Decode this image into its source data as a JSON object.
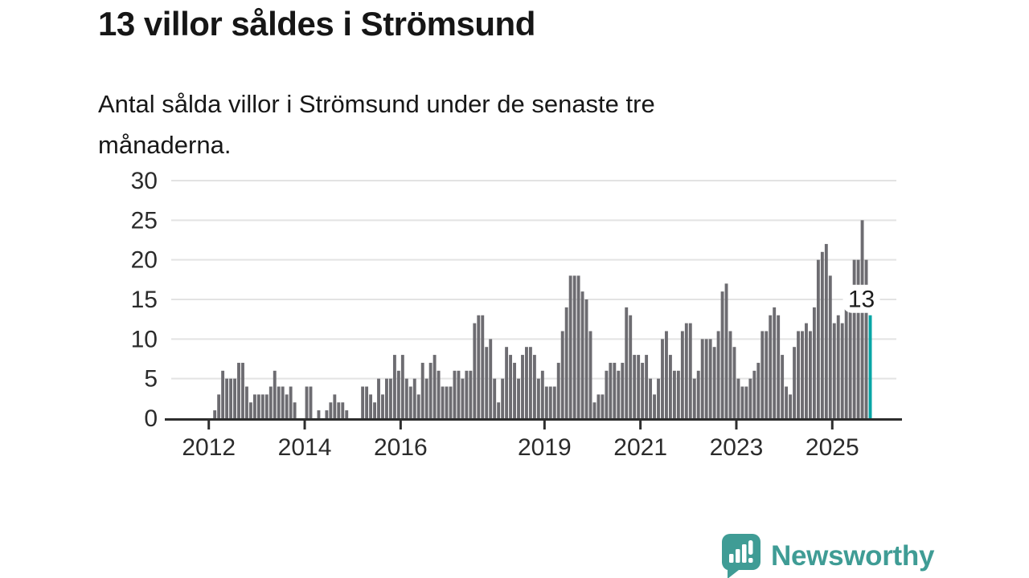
{
  "header": {
    "title": "13 villor såldes i Strömsund",
    "subtitle_lines": [
      "Antal sålda villor i Strömsund under de senaste tre",
      "månaderna."
    ]
  },
  "footer": {
    "brand": "Newsworthy"
  },
  "colors": {
    "bar": "#6d6c71",
    "highlight": "#00a5a5",
    "axis": "#2e2e2e",
    "grid": "#e3e3e3",
    "brand": "#3f9c95",
    "text": "#1a1a1a",
    "annotation_bg": "#ffffff"
  },
  "chart_data": {
    "type": "bar",
    "title": "13 villor såldes i Strömsund",
    "subtitle": "Antal sålda villor i Strömsund under de senaste tre månaderna.",
    "xlabel": "",
    "ylabel": "",
    "ylim": [
      0,
      30
    ],
    "yticks": [
      0,
      5,
      10,
      15,
      20,
      25,
      30
    ],
    "grid": true,
    "legend": "none",
    "x_unit": "month",
    "xticks": [
      {
        "label": "2012",
        "index": 10
      },
      {
        "label": "2014",
        "index": 34
      },
      {
        "label": "2016",
        "index": 58
      },
      {
        "label": "2019",
        "index": 94
      },
      {
        "label": "2021",
        "index": 118
      },
      {
        "label": "2023",
        "index": 142
      },
      {
        "label": "2025",
        "index": 166
      }
    ],
    "values": [
      0,
      0,
      0,
      0,
      0,
      0,
      0,
      0,
      0,
      0,
      0,
      1,
      3,
      6,
      5,
      5,
      5,
      7,
      7,
      4,
      2,
      3,
      3,
      3,
      3,
      4,
      6,
      4,
      4,
      3,
      4,
      2,
      0,
      0,
      4,
      4,
      0,
      1,
      0,
      1,
      2,
      3,
      2,
      2,
      1,
      0,
      0,
      0,
      4,
      4,
      3,
      2,
      5,
      3,
      5,
      5,
      8,
      6,
      8,
      5,
      4,
      5,
      3,
      7,
      5,
      7,
      8,
      6,
      4,
      4,
      4,
      6,
      6,
      5,
      6,
      6,
      12,
      13,
      13,
      9,
      10,
      5,
      2,
      5,
      9,
      8,
      7,
      5,
      8,
      9,
      9,
      8,
      5,
      6,
      4,
      4,
      4,
      7,
      11,
      14,
      18,
      18,
      18,
      16,
      15,
      11,
      2,
      3,
      3,
      6,
      7,
      7,
      6,
      7,
      14,
      13,
      8,
      8,
      7,
      8,
      5,
      3,
      5,
      10,
      11,
      8,
      6,
      6,
      11,
      12,
      12,
      5,
      6,
      10,
      10,
      10,
      9,
      11,
      16,
      17,
      11,
      9,
      5,
      4,
      4,
      5,
      6,
      7,
      11,
      11,
      13,
      14,
      13,
      8,
      4,
      3,
      9,
      11,
      11,
      12,
      11,
      14,
      20,
      21,
      22,
      18,
      12,
      13,
      12,
      14,
      15,
      20,
      20,
      25,
      20,
      13
    ],
    "highlight_index": 175,
    "annotation": {
      "text": "13",
      "value": 13
    }
  }
}
